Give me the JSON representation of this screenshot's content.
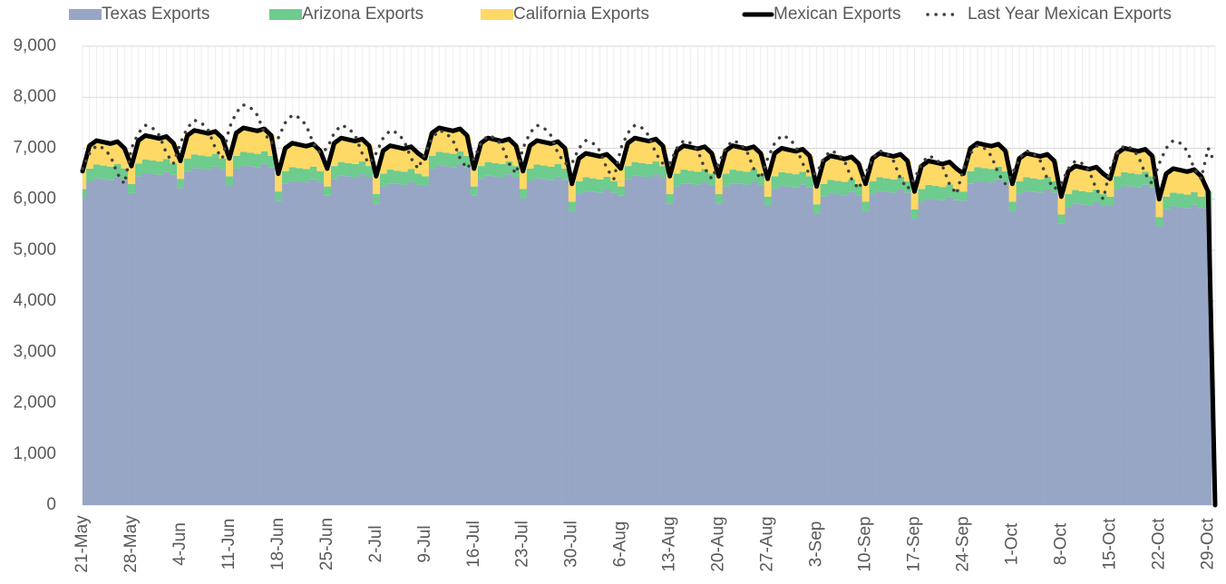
{
  "chart_data": {
    "type": "stacked-bar-line",
    "categories": [
      "21-May",
      null,
      null,
      null,
      null,
      null,
      null,
      "28-May",
      null,
      null,
      null,
      null,
      null,
      null,
      "4-Jun",
      null,
      null,
      null,
      null,
      null,
      null,
      "11-Jun",
      null,
      null,
      null,
      null,
      null,
      null,
      "18-Jun",
      null,
      null,
      null,
      null,
      null,
      null,
      "25-Jun",
      null,
      null,
      null,
      null,
      null,
      null,
      "2-Jul",
      null,
      null,
      null,
      null,
      null,
      null,
      "9-Jul",
      null,
      null,
      null,
      null,
      null,
      null,
      "16-Jul",
      null,
      null,
      null,
      null,
      null,
      null,
      "23-Jul",
      null,
      null,
      null,
      null,
      null,
      null,
      "30-Jul",
      null,
      null,
      null,
      null,
      null,
      null,
      "6-Aug",
      null,
      null,
      null,
      null,
      null,
      null,
      "13-Aug",
      null,
      null,
      null,
      null,
      null,
      null,
      "20-Aug",
      null,
      null,
      null,
      null,
      null,
      null,
      "27-Aug",
      null,
      null,
      null,
      null,
      null,
      null,
      "3-Sep",
      null,
      null,
      null,
      null,
      null,
      null,
      "10-Sep",
      null,
      null,
      null,
      null,
      null,
      null,
      "17-Sep",
      null,
      null,
      null,
      null,
      null,
      null,
      "24-Sep",
      null,
      null,
      null,
      null,
      null,
      null,
      "1-Oct",
      null,
      null,
      null,
      null,
      null,
      null,
      "8-Oct",
      null,
      null,
      null,
      null,
      null,
      null,
      "15-Oct",
      null,
      null,
      null,
      null,
      null,
      null,
      "22-Oct",
      null,
      null,
      null,
      null,
      null,
      null,
      "29-Oct",
      null
    ],
    "series": [
      {
        "name": "Texas Exports",
        "type": "bar",
        "color": "#97a6c4",
        "values": [
          6020,
          6350,
          6410,
          6400,
          6380,
          6440,
          6380,
          6120,
          6450,
          6510,
          6500,
          6480,
          6540,
          6480,
          6220,
          6550,
          6610,
          6600,
          6580,
          6640,
          6580,
          6270,
          6600,
          6660,
          6650,
          6630,
          6690,
          6630,
          5970,
          6300,
          6360,
          6350,
          6330,
          6390,
          6330,
          6070,
          6400,
          6460,
          6450,
          6430,
          6490,
          6430,
          5920,
          6250,
          6310,
          6300,
          6280,
          6340,
          6280,
          6270,
          6600,
          6660,
          6650,
          6630,
          6690,
          6630,
          6070,
          6400,
          6460,
          6450,
          6430,
          6490,
          6430,
          6020,
          6350,
          6410,
          6400,
          6380,
          6440,
          6380,
          5770,
          6100,
          6160,
          6150,
          6130,
          6190,
          6130,
          6070,
          6400,
          6460,
          6450,
          6430,
          6490,
          6430,
          5920,
          6250,
          6310,
          6300,
          6280,
          6340,
          6280,
          5920,
          6250,
          6310,
          6300,
          6280,
          6340,
          6280,
          5870,
          6200,
          6260,
          6250,
          6230,
          6290,
          6230,
          5720,
          6050,
          6110,
          6100,
          6080,
          6140,
          6080,
          5770,
          6100,
          6160,
          6150,
          6130,
          6190,
          6130,
          5620,
          5950,
          6010,
          6000,
          5980,
          6040,
          5980,
          5970,
          6300,
          6360,
          6350,
          6330,
          6390,
          6330,
          5770,
          6100,
          6160,
          6150,
          6130,
          6190,
          6130,
          5520,
          5850,
          5910,
          5900,
          5880,
          5940,
          5880,
          5870,
          6200,
          6260,
          6250,
          6230,
          6290,
          6230,
          5470,
          5800,
          5860,
          5850,
          5830,
          5890,
          5830,
          5890,
          0
        ]
      },
      {
        "name": "Arizona Exports",
        "type": "bar",
        "color": "#6dcc8e",
        "values": [
          180,
          250,
          270,
          260,
          260,
          250,
          220,
          180,
          250,
          270,
          260,
          260,
          250,
          220,
          180,
          250,
          270,
          260,
          260,
          250,
          220,
          180,
          250,
          270,
          260,
          260,
          250,
          220,
          180,
          250,
          270,
          260,
          260,
          250,
          220,
          180,
          250,
          270,
          260,
          260,
          250,
          220,
          180,
          250,
          270,
          260,
          260,
          250,
          220,
          180,
          250,
          270,
          260,
          260,
          250,
          220,
          180,
          250,
          270,
          260,
          260,
          250,
          220,
          180,
          250,
          270,
          260,
          260,
          250,
          220,
          180,
          250,
          270,
          260,
          260,
          250,
          220,
          180,
          250,
          270,
          260,
          260,
          250,
          220,
          180,
          250,
          270,
          260,
          260,
          250,
          220,
          180,
          250,
          270,
          260,
          260,
          250,
          220,
          180,
          250,
          270,
          260,
          260,
          250,
          220,
          180,
          250,
          270,
          260,
          260,
          250,
          220,
          180,
          250,
          270,
          260,
          260,
          250,
          220,
          180,
          250,
          270,
          260,
          260,
          250,
          220,
          180,
          250,
          270,
          260,
          260,
          250,
          220,
          180,
          250,
          270,
          260,
          260,
          250,
          220,
          180,
          250,
          270,
          260,
          260,
          250,
          220,
          180,
          250,
          270,
          260,
          260,
          250,
          220,
          180,
          250,
          270,
          260,
          260,
          250,
          220,
          260,
          0
        ]
      },
      {
        "name": "California Exports",
        "type": "bar",
        "color": "#ffd966",
        "values": [
          350,
          450,
          470,
          460,
          450,
          440,
          400,
          350,
          450,
          470,
          460,
          450,
          440,
          400,
          350,
          450,
          470,
          460,
          450,
          440,
          400,
          350,
          450,
          470,
          460,
          450,
          440,
          400,
          350,
          450,
          470,
          460,
          450,
          440,
          400,
          350,
          450,
          470,
          460,
          450,
          440,
          400,
          350,
          450,
          470,
          460,
          450,
          440,
          400,
          350,
          450,
          470,
          460,
          450,
          440,
          400,
          350,
          450,
          470,
          460,
          450,
          440,
          400,
          350,
          450,
          470,
          460,
          450,
          440,
          400,
          350,
          450,
          470,
          460,
          450,
          440,
          400,
          350,
          450,
          470,
          460,
          450,
          440,
          400,
          350,
          450,
          470,
          460,
          450,
          440,
          400,
          350,
          450,
          470,
          460,
          450,
          440,
          400,
          350,
          450,
          470,
          460,
          450,
          440,
          400,
          350,
          450,
          470,
          460,
          450,
          440,
          400,
          350,
          450,
          470,
          460,
          450,
          440,
          400,
          350,
          450,
          470,
          460,
          450,
          440,
          400,
          350,
          450,
          470,
          460,
          450,
          440,
          400,
          350,
          450,
          470,
          460,
          450,
          440,
          400,
          350,
          450,
          470,
          460,
          450,
          440,
          400,
          350,
          450,
          470,
          460,
          450,
          440,
          400,
          350,
          450,
          470,
          460,
          450,
          440,
          400,
          0,
          0
        ]
      },
      {
        "name": "Mexican Exports",
        "type": "line",
        "color": "#000000",
        "values": [
          6550,
          7050,
          7150,
          7120,
          7090,
          7130,
          7000,
          6650,
          7150,
          7250,
          7220,
          7190,
          7230,
          7100,
          6750,
          7250,
          7350,
          7320,
          7290,
          7330,
          7200,
          6800,
          7300,
          7400,
          7370,
          7340,
          7380,
          7250,
          6500,
          7000,
          7100,
          7070,
          7040,
          7080,
          6950,
          6600,
          7100,
          7200,
          7170,
          7140,
          7180,
          7050,
          6450,
          6950,
          7050,
          7020,
          6990,
          7030,
          6900,
          6800,
          7300,
          7400,
          7370,
          7340,
          7380,
          7250,
          6600,
          7100,
          7200,
          7170,
          7140,
          7180,
          7050,
          6550,
          7050,
          7150,
          7120,
          7090,
          7130,
          7000,
          6300,
          6800,
          6900,
          6870,
          6840,
          6880,
          6750,
          6600,
          7100,
          7200,
          7170,
          7140,
          7180,
          7050,
          6450,
          6950,
          7050,
          7020,
          6990,
          7030,
          6900,
          6450,
          6950,
          7050,
          7020,
          6990,
          7030,
          6900,
          6400,
          6900,
          7000,
          6970,
          6940,
          6980,
          6850,
          6250,
          6750,
          6850,
          6820,
          6790,
          6830,
          6700,
          6300,
          6800,
          6900,
          6870,
          6840,
          6880,
          6750,
          6150,
          6650,
          6750,
          6720,
          6690,
          6730,
          6600,
          6500,
          7000,
          7100,
          7070,
          7040,
          7080,
          6950,
          6300,
          6800,
          6900,
          6870,
          6840,
          6880,
          6750,
          6050,
          6550,
          6650,
          6620,
          6590,
          6630,
          6500,
          6400,
          6900,
          7000,
          6970,
          6940,
          6980,
          6850,
          6000,
          6500,
          6600,
          6570,
          6540,
          6580,
          6450,
          6150,
          0
        ]
      },
      {
        "name": "Last Year Mexican Exports",
        "type": "line",
        "dashed": true,
        "color": "#404040",
        "values": [
          6600,
          6900,
          7050,
          7000,
          6850,
          6500,
          6300,
          7000,
          7300,
          7450,
          7400,
          7250,
          6900,
          6700,
          7100,
          7400,
          7550,
          7500,
          7350,
          7000,
          6800,
          7400,
          7700,
          7850,
          7800,
          7650,
          7300,
          7100,
          7200,
          7500,
          7650,
          7600,
          7450,
          7100,
          6900,
          7000,
          7300,
          7450,
          7400,
          7250,
          6900,
          6700,
          6900,
          7200,
          7350,
          7300,
          7150,
          6800,
          6600,
          6900,
          7200,
          7350,
          7300,
          7150,
          6800,
          6600,
          6800,
          7100,
          7250,
          7200,
          7050,
          6700,
          6500,
          7000,
          7300,
          7450,
          7400,
          7250,
          6900,
          6700,
          6700,
          7000,
          7150,
          7100,
          6950,
          6600,
          6400,
          7000,
          7300,
          7450,
          7400,
          7250,
          6900,
          6700,
          6700,
          7000,
          7150,
          7100,
          6950,
          6600,
          6400,
          6700,
          7000,
          7150,
          7100,
          6950,
          6600,
          6400,
          6800,
          7100,
          7250,
          7200,
          7050,
          6700,
          6500,
          6500,
          6800,
          6950,
          6900,
          6750,
          6400,
          6200,
          6500,
          6800,
          6950,
          6900,
          6750,
          6400,
          6200,
          6400,
          6700,
          6850,
          6800,
          6650,
          6300,
          6100,
          6600,
          6900,
          7050,
          7000,
          6850,
          6500,
          6300,
          6500,
          6800,
          6950,
          6900,
          6750,
          6400,
          6200,
          6300,
          6600,
          6750,
          6700,
          6550,
          6200,
          6000,
          6600,
          6900,
          7050,
          7000,
          6850,
          6500,
          6300,
          6700,
          7000,
          7150,
          7100,
          6950,
          6600,
          6400,
          7000,
          6700
        ]
      }
    ],
    "ylim": [
      0,
      9000
    ],
    "yticks": [
      0,
      {
        "value": 1000,
        "label": "1,000"
      },
      {
        "value": 2000,
        "label": "2,000"
      },
      {
        "value": 3000,
        "label": "3,000"
      },
      {
        "value": 4000,
        "label": "4,000"
      },
      {
        "value": 5000,
        "label": "5,000"
      },
      {
        "value": 6000,
        "label": "6,000"
      },
      {
        "value": 7000,
        "label": "7,000"
      },
      {
        "value": 8000,
        "label": "8,000"
      },
      {
        "value": 9000,
        "label": "9,000"
      }
    ],
    "grid": true,
    "legend": "top"
  }
}
